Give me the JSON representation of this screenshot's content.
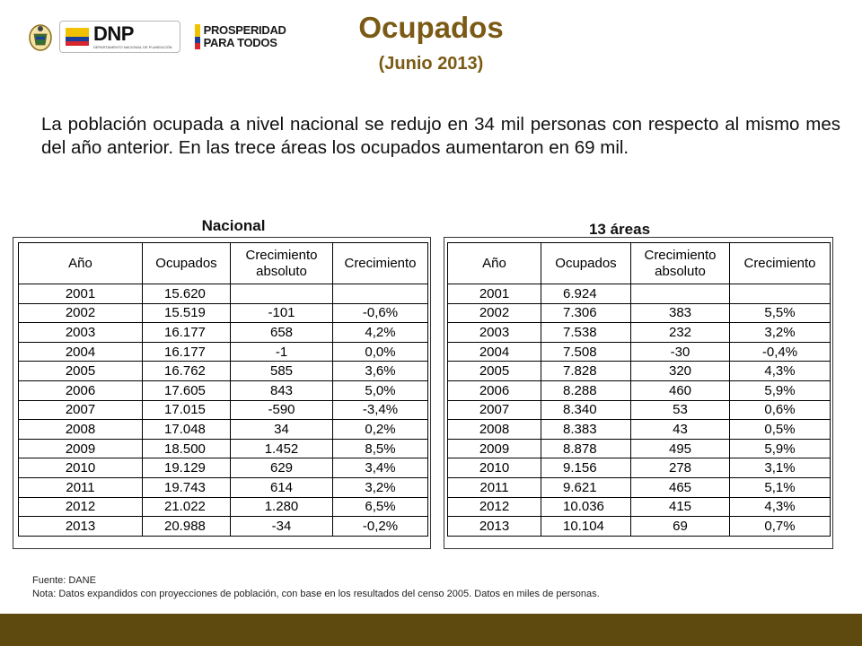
{
  "header": {
    "title": "Ocupados",
    "subtitle": "(Junio 2013)"
  },
  "logos": {
    "dnp_mark": "DNP",
    "dnp_caption": "DEPARTAMENTO NACIONAL DE PLANEACIÓN",
    "prosperidad_line1": "PROSPERIDAD",
    "prosperidad_line2": "PARA TODOS"
  },
  "intro": "La población ocupada a nivel nacional se redujo en 34 mil personas con respecto al mismo mes del año anterior. En las trece áreas los ocupados aumentaron en 69 mil.",
  "tables": {
    "nacional": {
      "title": "Nacional",
      "headers": [
        "Año",
        "Ocupados",
        "Crecimiento absoluto",
        "Crecimiento"
      ],
      "rows": [
        {
          "year": "2001",
          "ocupados": "15.620",
          "abs": "",
          "pct": ""
        },
        {
          "year": "2002",
          "ocupados": "15.519",
          "abs": "-101",
          "pct": "-0,6%"
        },
        {
          "year": "2003",
          "ocupados": "16.177",
          "abs": "658",
          "pct": "4,2%"
        },
        {
          "year": "2004",
          "ocupados": "16.177",
          "abs": "-1",
          "pct": "0,0%"
        },
        {
          "year": "2005",
          "ocupados": "16.762",
          "abs": "585",
          "pct": "3,6%"
        },
        {
          "year": "2006",
          "ocupados": "17.605",
          "abs": "843",
          "pct": "5,0%"
        },
        {
          "year": "2007",
          "ocupados": "17.015",
          "abs": "-590",
          "pct": "-3,4%"
        },
        {
          "year": "2008",
          "ocupados": "17.048",
          "abs": "34",
          "pct": "0,2%"
        },
        {
          "year": "2009",
          "ocupados": "18.500",
          "abs": "1.452",
          "pct": "8,5%"
        },
        {
          "year": "2010",
          "ocupados": "19.129",
          "abs": "629",
          "pct": "3,4%"
        },
        {
          "year": "2011",
          "ocupados": "19.743",
          "abs": "614",
          "pct": "3,2%"
        },
        {
          "year": "2012",
          "ocupados": "21.022",
          "abs": "1.280",
          "pct": "6,5%"
        },
        {
          "year": "2013",
          "ocupados": "20.988",
          "abs": "-34",
          "pct": "-0,2%"
        }
      ]
    },
    "areas": {
      "title": "13 áreas",
      "headers": [
        "Año",
        "Ocupados",
        "Crecimiento absoluto",
        "Crecimiento"
      ],
      "rows": [
        {
          "year": "2001",
          "ocupados": "6.924",
          "abs": "",
          "pct": ""
        },
        {
          "year": "2002",
          "ocupados": "7.306",
          "abs": "383",
          "pct": "5,5%"
        },
        {
          "year": "2003",
          "ocupados": "7.538",
          "abs": "232",
          "pct": "3,2%"
        },
        {
          "year": "2004",
          "ocupados": "7.508",
          "abs": "-30",
          "pct": "-0,4%"
        },
        {
          "year": "2005",
          "ocupados": "7.828",
          "abs": "320",
          "pct": "4,3%"
        },
        {
          "year": "2006",
          "ocupados": "8.288",
          "abs": "460",
          "pct": "5,9%"
        },
        {
          "year": "2007",
          "ocupados": "8.340",
          "abs": "53",
          "pct": "0,6%"
        },
        {
          "year": "2008",
          "ocupados": "8.383",
          "abs": "43",
          "pct": "0,5%"
        },
        {
          "year": "2009",
          "ocupados": "8.878",
          "abs": "495",
          "pct": "5,9%"
        },
        {
          "year": "2010",
          "ocupados": "9.156",
          "abs": "278",
          "pct": "3,1%"
        },
        {
          "year": "2011",
          "ocupados": "9.621",
          "abs": "465",
          "pct": "5,1%"
        },
        {
          "year": "2012",
          "ocupados": "10.036",
          "abs": "415",
          "pct": "4,3%"
        },
        {
          "year": "2013",
          "ocupados": "10.104",
          "abs": "69",
          "pct": "0,7%"
        }
      ]
    }
  },
  "footnote": {
    "source": "Fuente: DANE",
    "note": "Nota: Datos expandidos con proyecciones de población, con base en los resultados del censo 2005. Datos en miles de personas."
  },
  "colors": {
    "title": "#7a5a14",
    "bottom_bar": "#5e4a0f"
  }
}
